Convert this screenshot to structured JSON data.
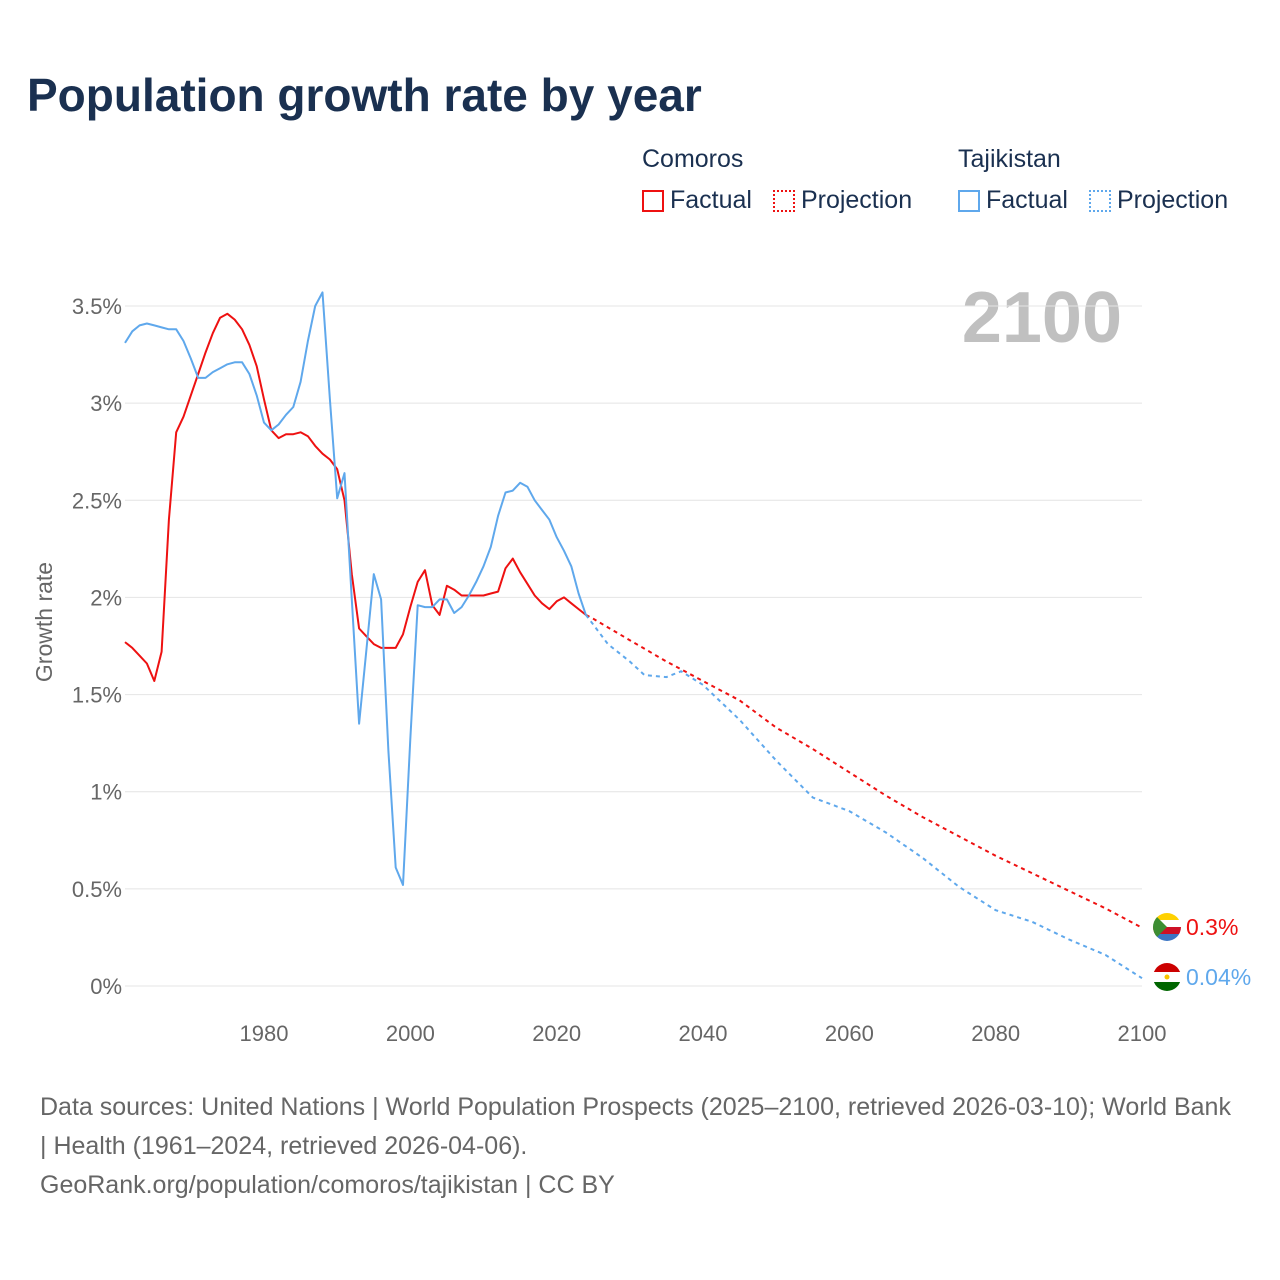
{
  "chart_data": {
    "type": "line",
    "title": "Population growth rate by year",
    "ylabel": "Growth rate",
    "xlabel": "",
    "xlim": [
      1961,
      2100
    ],
    "ylim": [
      0,
      3.5
    ],
    "grid": true,
    "year_watermark": "2100",
    "x_ticks": [
      "1980",
      "2000",
      "2020",
      "2040",
      "2060",
      "2080",
      "2100"
    ],
    "y_ticks": [
      "0%",
      "0.5%",
      "1%",
      "1.5%",
      "2%",
      "2.5%",
      "3%",
      "3.5%"
    ],
    "legend": {
      "placement": "top-right",
      "groups": [
        {
          "name": "Comoros",
          "factual": "Factual",
          "projection": "Projection"
        },
        {
          "name": "Tajikistan",
          "factual": "Factual",
          "projection": "Projection"
        }
      ]
    },
    "series": [
      {
        "name": "Comoros",
        "color": "#ee1111",
        "end_label": "0.3%",
        "factual_start": 1961,
        "factual": [
          1.77,
          1.74,
          1.7,
          1.66,
          1.57,
          1.72,
          2.4,
          2.85,
          2.93,
          3.04,
          3.15,
          3.26,
          3.36,
          3.44,
          3.46,
          3.43,
          3.38,
          3.3,
          3.19,
          3.02,
          2.86,
          2.82,
          2.84,
          2.84,
          2.85,
          2.83,
          2.78,
          2.74,
          2.71,
          2.66,
          2.5,
          2.12,
          1.84,
          1.8,
          1.76,
          1.74,
          1.74,
          1.74,
          1.81,
          1.95,
          2.08,
          2.14,
          1.96,
          1.91,
          2.06,
          2.04,
          2.01,
          2.01,
          2.01,
          2.01,
          2.02,
          2.03,
          2.15,
          2.2,
          2.13,
          2.07,
          2.01,
          1.97,
          1.94,
          1.98,
          2.0,
          1.97,
          1.94,
          1.91
        ],
        "projection_years": [
          2024,
          2025,
          2030,
          2035,
          2040,
          2045,
          2050,
          2055,
          2060,
          2065,
          2070,
          2075,
          2080,
          2085,
          2090,
          2095,
          2100
        ],
        "projection": [
          1.91,
          1.89,
          1.78,
          1.67,
          1.57,
          1.47,
          1.33,
          1.22,
          1.1,
          0.98,
          0.87,
          0.77,
          0.67,
          0.58,
          0.49,
          0.4,
          0.3
        ]
      },
      {
        "name": "Tajikistan",
        "color": "#5fa8ec",
        "end_label": "0.04%",
        "factual_start": 1961,
        "factual": [
          3.31,
          3.37,
          3.4,
          3.41,
          3.4,
          3.39,
          3.38,
          3.38,
          3.32,
          3.23,
          3.13,
          3.13,
          3.16,
          3.18,
          3.2,
          3.21,
          3.21,
          3.15,
          3.04,
          2.9,
          2.86,
          2.89,
          2.94,
          2.98,
          3.11,
          3.32,
          3.5,
          3.57,
          3.02,
          2.51,
          2.64,
          1.99,
          1.35,
          1.73,
          2.12,
          1.99,
          1.21,
          0.61,
          0.52,
          1.27,
          1.96,
          1.95,
          1.95,
          1.99,
          1.99,
          1.92,
          1.95,
          2.01,
          2.08,
          2.16,
          2.26,
          2.42,
          2.54,
          2.55,
          2.59,
          2.57,
          2.5,
          2.45,
          2.4,
          2.31,
          2.24,
          2.16,
          2.02,
          1.91
        ],
        "projection_years": [
          2024,
          2025,
          2027,
          2030,
          2032,
          2035,
          2037,
          2040,
          2045,
          2050,
          2055,
          2060,
          2065,
          2070,
          2075,
          2080,
          2085,
          2090,
          2095,
          2100
        ],
        "projection": [
          1.91,
          1.86,
          1.76,
          1.67,
          1.6,
          1.59,
          1.62,
          1.55,
          1.37,
          1.16,
          0.97,
          0.9,
          0.79,
          0.66,
          0.51,
          0.39,
          0.33,
          0.24,
          0.16,
          0.04
        ]
      }
    ],
    "footer": {
      "sources": "Data sources: United Nations | World Population Prospects (2025–2100, retrieved 2026-03-10); World Bank | Health (1961–2024, retrieved 2026-04-06).",
      "link": "GeoRank.org/population/comoros/tajikistan | CC BY"
    }
  }
}
